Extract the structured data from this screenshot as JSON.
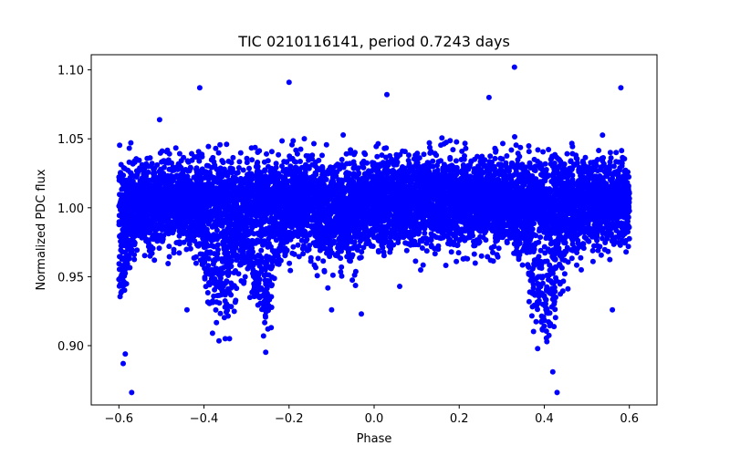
{
  "chart_data": {
    "type": "scatter",
    "title": "TIC 0210116141, period 0.7243 days",
    "xlabel": "Phase",
    "ylabel": "Normalized PDC flux",
    "xlim": [
      -0.665,
      0.665
    ],
    "ylim": [
      0.857,
      1.111
    ],
    "x_ticks": [
      -0.6,
      -0.4,
      -0.2,
      0.0,
      0.2,
      0.4,
      0.6
    ],
    "x_tick_labels": [
      "−0.6",
      "−0.4",
      "−0.2",
      "0.0",
      "0.2",
      "0.4",
      "0.6"
    ],
    "y_ticks": [
      0.9,
      0.95,
      1.0,
      1.05,
      1.1
    ],
    "y_tick_labels": [
      "0.90",
      "0.95",
      "1.00",
      "1.05",
      "1.10"
    ],
    "grid": false,
    "marker_color": "#0000ff",
    "series": [
      {
        "name": "flux",
        "phase_range": [
          -0.6,
          0.6
        ],
        "baseline_flux": 1.005,
        "scatter_sigma": 0.015,
        "n_points": 9000,
        "dips": [
          {
            "center": -0.6,
            "depth": 0.055,
            "width": 0.03
          },
          {
            "center": -0.36,
            "depth": 0.06,
            "width": 0.05
          },
          {
            "center": -0.26,
            "depth": 0.065,
            "width": 0.04
          },
          {
            "center": -0.09,
            "depth": 0.025,
            "width": 0.06
          },
          {
            "center": 0.4,
            "depth": 0.075,
            "width": 0.045
          }
        ],
        "outliers": [
          {
            "x": -0.57,
            "y": 0.866
          },
          {
            "x": -0.59,
            "y": 0.887
          },
          {
            "x": -0.585,
            "y": 0.894
          },
          {
            "x": -0.41,
            "y": 1.087
          },
          {
            "x": -0.2,
            "y": 1.091
          },
          {
            "x": 0.33,
            "y": 1.102
          },
          {
            "x": 0.43,
            "y": 0.866
          },
          {
            "x": 0.42,
            "y": 0.881
          },
          {
            "x": 0.58,
            "y": 1.087
          },
          {
            "x": 0.03,
            "y": 1.082
          },
          {
            "x": 0.27,
            "y": 1.08
          },
          {
            "x": 0.06,
            "y": 0.943
          },
          {
            "x": -0.34,
            "y": 0.905
          },
          {
            "x": -0.35,
            "y": 0.905
          },
          {
            "x": -0.38,
            "y": 0.909
          },
          {
            "x": -0.26,
            "y": 0.907
          },
          {
            "x": -0.1,
            "y": 0.926
          },
          {
            "x": -0.44,
            "y": 0.926
          },
          {
            "x": 0.56,
            "y": 0.926
          },
          {
            "x": -0.03,
            "y": 0.923
          }
        ]
      }
    ]
  }
}
